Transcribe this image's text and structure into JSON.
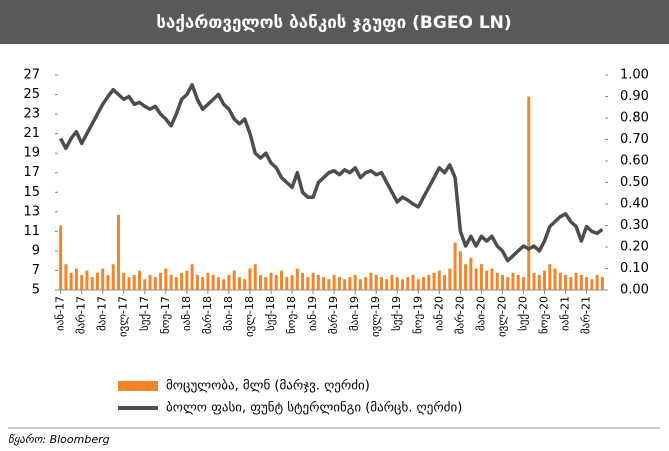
{
  "chart_data": {
    "type": "combo",
    "title": "საქართველოს ბანკის ჯგუფი (BGEO LN)",
    "source": "წყარო: Bloomberg",
    "categories": [
      "იან-17",
      null,
      null,
      null,
      "მარ-17",
      null,
      null,
      null,
      "მაი-17",
      null,
      null,
      null,
      "ივლ-17",
      null,
      null,
      null,
      "სექ-17",
      null,
      null,
      null,
      "ნოე-17",
      null,
      null,
      null,
      "იან-18",
      null,
      null,
      null,
      "მარ-18",
      null,
      null,
      null,
      "მაი-18",
      null,
      null,
      null,
      "ივლ-18",
      null,
      null,
      null,
      "სექ-18",
      null,
      null,
      null,
      "ნოე-18",
      null,
      null,
      null,
      "იან-19",
      null,
      null,
      null,
      "მარ-19",
      null,
      null,
      null,
      "მაი-19",
      null,
      null,
      null,
      "ივლ-19",
      null,
      null,
      null,
      "სექ-19",
      null,
      null,
      null,
      "ნოე-19",
      null,
      null,
      null,
      "იან-20",
      null,
      null,
      null,
      "მარ-20",
      null,
      null,
      null,
      "მაი-20",
      null,
      null,
      null,
      "ივლ-20",
      null,
      null,
      null,
      "სექ-20",
      null,
      null,
      null,
      "ნოე-20",
      null,
      null,
      null,
      "იან-21",
      null,
      null,
      null,
      "მარ-21",
      null,
      null,
      null
    ],
    "series": [
      {
        "name": "მოცულობა, მლნ (მარჯვ. ღერძი)",
        "type": "bar",
        "axis": "y2",
        "color": "#f4842a",
        "values": [
          0.3,
          0.12,
          0.08,
          0.1,
          0.07,
          0.09,
          0.06,
          0.08,
          0.1,
          0.07,
          0.12,
          0.35,
          0.08,
          0.06,
          0.07,
          0.09,
          0.05,
          0.07,
          0.06,
          0.08,
          0.1,
          0.07,
          0.06,
          0.08,
          0.09,
          0.12,
          0.07,
          0.06,
          0.08,
          0.07,
          0.06,
          0.05,
          0.07,
          0.09,
          0.06,
          0.05,
          0.1,
          0.12,
          0.07,
          0.06,
          0.08,
          0.07,
          0.09,
          0.06,
          0.07,
          0.1,
          0.08,
          0.06,
          0.08,
          0.07,
          0.06,
          0.05,
          0.07,
          0.06,
          0.05,
          0.06,
          0.07,
          0.05,
          0.06,
          0.08,
          0.07,
          0.06,
          0.05,
          0.07,
          0.06,
          0.05,
          0.06,
          0.07,
          0.05,
          0.06,
          0.07,
          0.08,
          0.09,
          0.07,
          0.1,
          0.22,
          0.18,
          0.12,
          0.15,
          0.1,
          0.12,
          0.09,
          0.1,
          0.08,
          0.07,
          0.06,
          0.08,
          0.07,
          0.06,
          0.9,
          0.08,
          0.07,
          0.09,
          0.12,
          0.1,
          0.08,
          0.07,
          0.06,
          0.08,
          0.07,
          0.06,
          0.05,
          0.07,
          0.06
        ]
      },
      {
        "name": "ბოლო ფასი, ფუნტ სტერლინგი (მარცხ. ღერძი)",
        "type": "line",
        "axis": "y",
        "color": "#4d4d4d",
        "values": [
          20.5,
          19.5,
          20.5,
          21.2,
          20,
          21,
          22,
          23,
          24,
          24.8,
          25.5,
          25,
          24.5,
          24.8,
          24,
          24.2,
          23.8,
          23.5,
          23.8,
          23,
          22.5,
          21.8,
          23,
          24.5,
          25,
          26,
          24.5,
          23.5,
          24,
          24.5,
          25,
          24,
          23.5,
          22.5,
          22,
          22.5,
          21,
          19,
          18.5,
          19,
          18,
          17.5,
          16.5,
          16,
          15.5,
          17,
          15,
          14.5,
          14.5,
          16,
          16.5,
          17,
          17.2,
          16.8,
          17.3,
          17,
          17.5,
          16.5,
          17,
          17.2,
          16.8,
          17,
          16,
          15,
          14,
          14.5,
          14.2,
          13.8,
          13.5,
          14.5,
          15.5,
          16.5,
          17.5,
          17,
          17.8,
          16.5,
          11,
          9.5,
          10.5,
          9.5,
          10.5,
          10,
          10.5,
          9.5,
          9,
          8,
          8.5,
          9,
          9.5,
          9.2,
          9.5,
          9,
          10,
          11.5,
          12,
          12.5,
          12.8,
          12,
          11.5,
          10,
          11.5,
          11,
          10.8,
          11.2
        ]
      }
    ],
    "ylim": [
      5,
      27
    ],
    "yticks": [
      5,
      7,
      9,
      11,
      13,
      15,
      17,
      19,
      21,
      23,
      25,
      27
    ],
    "y2lim": [
      0,
      1
    ],
    "y2ticks": [
      {
        "value": 0,
        "label": "0.00"
      },
      {
        "value": 0.1,
        "label": "0.10"
      },
      {
        "value": 0.2,
        "label": "0.20"
      },
      {
        "value": 0.3,
        "label": "0.30"
      },
      {
        "value": 0.4,
        "label": "0.40"
      },
      {
        "value": 0.5,
        "label": "0.50"
      },
      {
        "value": 0.6,
        "label": "0.60"
      },
      {
        "value": 0.7,
        "label": "0.70"
      },
      {
        "value": 0.8,
        "label": "0.80"
      },
      {
        "value": 0.9,
        "label": "0.90"
      },
      {
        "value": 1,
        "label": "1.00"
      }
    ],
    "grid": false,
    "legend": "bottom"
  }
}
